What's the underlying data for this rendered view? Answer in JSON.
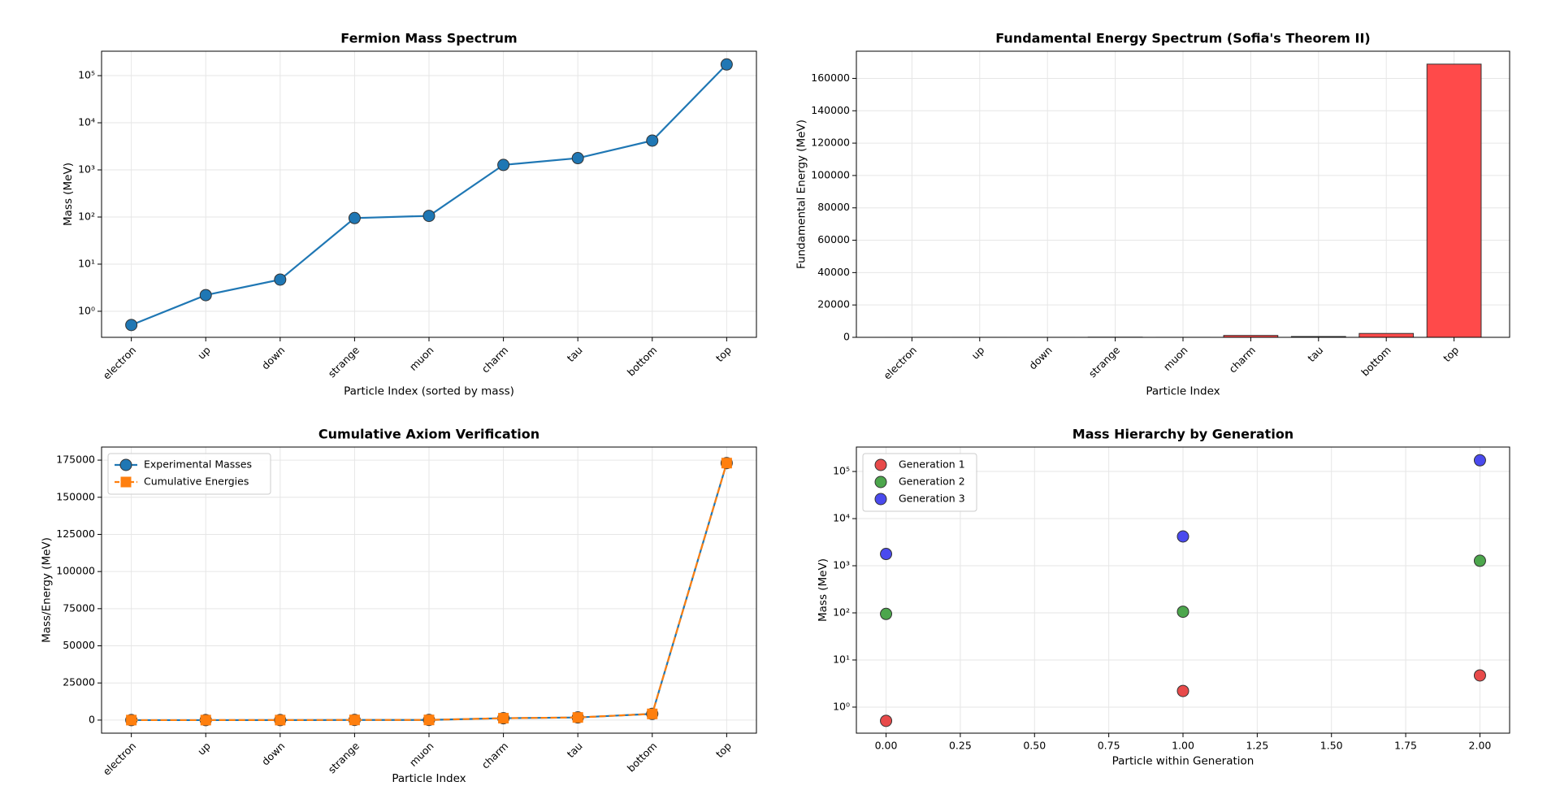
{
  "chart_data": [
    {
      "type": "line",
      "title": "Fermion Mass Spectrum",
      "xlabel": "Particle Index (sorted by mass)",
      "ylabel": "Mass (MeV)",
      "categories": [
        "electron",
        "up",
        "down",
        "strange",
        "muon",
        "charm",
        "tau",
        "bottom",
        "top"
      ],
      "values": [
        0.511,
        2.2,
        4.7,
        95,
        105.7,
        1275,
        1777,
        4180,
        173000
      ],
      "color": "#1f77b4",
      "log_y": true,
      "ylim": [
        0.28,
        330000
      ],
      "yticks": [
        {
          "value": 1,
          "label": "10⁰"
        },
        {
          "value": 10,
          "label": "10¹"
        },
        {
          "value": 100,
          "label": "10²"
        },
        {
          "value": 1000,
          "label": "10³"
        },
        {
          "value": 10000,
          "label": "10⁴"
        },
        {
          "value": 100000,
          "label": "10⁵"
        }
      ],
      "grid": true
    },
    {
      "type": "bar",
      "title": "Fundamental Energy Spectrum (Sofia's Theorem II)",
      "xlabel": "Particle Index",
      "ylabel": "Fundamental Energy (MeV)",
      "categories": [
        "electron",
        "up",
        "down",
        "strange",
        "muon",
        "charm",
        "tau",
        "bottom",
        "top"
      ],
      "values": [
        0.511,
        1.689,
        2.5,
        90.3,
        10.7,
        1169.3,
        502,
        2403,
        168820
      ],
      "color": "#ff4a4a",
      "ylim": [
        0,
        176800
      ],
      "yticks": [
        0,
        20000,
        40000,
        60000,
        80000,
        100000,
        120000,
        140000,
        160000
      ],
      "grid": true
    },
    {
      "type": "line",
      "title": "Cumulative Axiom Verification",
      "xlabel": "Particle Index",
      "ylabel": "Mass/Energy (MeV)",
      "categories": [
        "electron",
        "up",
        "down",
        "strange",
        "muon",
        "charm",
        "tau",
        "bottom",
        "top"
      ],
      "series": [
        {
          "name": "Experimental Masses",
          "color": "#1f77b4",
          "marker": "circle",
          "values": [
            0.511,
            2.2,
            4.7,
            95,
            105.7,
            1275,
            1777,
            4180,
            173000
          ]
        },
        {
          "name": "Cumulative Energies",
          "color": "#ff7f0e",
          "marker": "square",
          "dashed": true,
          "values": [
            0.511,
            2.2,
            4.7,
            95,
            105.7,
            1275,
            1777,
            4180,
            173000
          ]
        }
      ],
      "ylim": [
        -8800,
        183800
      ],
      "yticks": [
        0,
        25000,
        50000,
        75000,
        100000,
        125000,
        150000,
        175000
      ],
      "grid": true,
      "legend": "upper left"
    },
    {
      "type": "scatter",
      "title": "Mass Hierarchy by Generation",
      "xlabel": "Particle within Generation",
      "ylabel": "Mass (MeV)",
      "series": [
        {
          "name": "Generation 1",
          "color": "#e84a4a",
          "x": [
            0,
            1,
            2
          ],
          "values": [
            0.511,
            2.2,
            4.7
          ]
        },
        {
          "name": "Generation 2",
          "color": "#4ca64c",
          "x": [
            0,
            1,
            2
          ],
          "values": [
            95,
            105.7,
            1275
          ]
        },
        {
          "name": "Generation 3",
          "color": "#4a4aee",
          "x": [
            0,
            1,
            2
          ],
          "values": [
            1777,
            4180,
            173000
          ]
        }
      ],
      "xlim": [
        -0.1,
        2.1
      ],
      "xticks": [
        {
          "value": 0,
          "label": "0.00"
        },
        {
          "value": 0.25,
          "label": "0.25"
        },
        {
          "value": 0.5,
          "label": "0.50"
        },
        {
          "value": 0.75,
          "label": "0.75"
        },
        {
          "value": 1,
          "label": "1.00"
        },
        {
          "value": 1.25,
          "label": "1.25"
        },
        {
          "value": 1.5,
          "label": "1.50"
        },
        {
          "value": 1.75,
          "label": "1.75"
        },
        {
          "value": 2,
          "label": "2.00"
        }
      ],
      "log_y": true,
      "ylim": [
        0.28,
        330000
      ],
      "yticks": [
        {
          "value": 1,
          "label": "10⁰"
        },
        {
          "value": 10,
          "label": "10¹"
        },
        {
          "value": 100,
          "label": "10²"
        },
        {
          "value": 1000,
          "label": "10³"
        },
        {
          "value": 10000,
          "label": "10⁴"
        },
        {
          "value": 100000,
          "label": "10⁵"
        }
      ],
      "grid": true,
      "legend": "upper left"
    }
  ]
}
